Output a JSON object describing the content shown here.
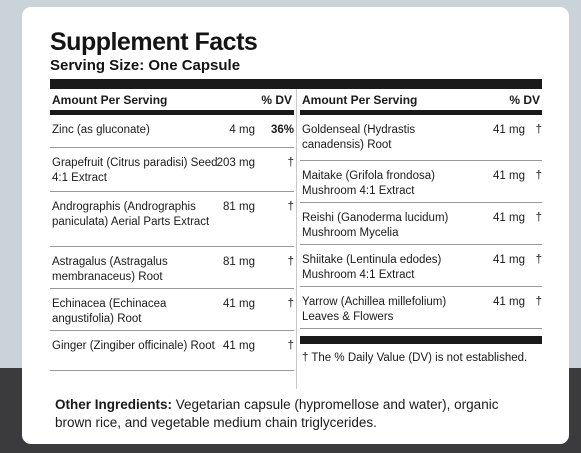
{
  "title": "Supplement Facts",
  "serving_size": "Serving Size: One Capsule",
  "header": {
    "amount_per_serving": "Amount Per Serving",
    "dv": "% DV"
  },
  "left_rows": [
    {
      "name": "Zinc (as gluconate)",
      "amount": "4 mg",
      "dv": "36%"
    },
    {
      "name": "Grapefruit (Citrus paradisi) Seed 4:1 Extract",
      "amount": "203 mg",
      "dv": "†"
    },
    {
      "name": "Andrographis (Andrographis paniculata) Aerial Parts Extract",
      "amount": "81 mg",
      "dv": "†"
    },
    {
      "name": "Astragalus (Astragalus membranaceus) Root",
      "amount": "81 mg",
      "dv": "†"
    },
    {
      "name": "Echinacea (Echinacea angustifolia) Root",
      "amount": "41 mg",
      "dv": "†"
    },
    {
      "name": "Ginger (Zingiber officinale) Root",
      "amount": "41 mg",
      "dv": "†"
    }
  ],
  "right_rows": [
    {
      "name": "Goldenseal (Hydrastis canadensis) Root",
      "amount": "41 mg",
      "dv": "†"
    },
    {
      "name": "Maitake (Grifola frondosa) Mushroom 4:1 Extract",
      "amount": "41 mg",
      "dv": "†"
    },
    {
      "name": "Reishi (Ganoderma lucidum) Mushroom Mycelia",
      "amount": "41 mg",
      "dv": "†"
    },
    {
      "name": "Shiitake (Lentinula edodes) Mushroom 4:1 Extract",
      "amount": "41 mg",
      "dv": "†"
    },
    {
      "name": "Yarrow (Achillea millefolium) Leaves & Flowers",
      "amount": "41 mg",
      "dv": "†"
    }
  ],
  "footnote": "† The % Daily Value (DV) is not established.",
  "other_ingredients": {
    "label": "Other Ingredients:",
    "text": " Vegetarian capsule (hypromellose and water), organic brown rice, and vegetable medium chain triglycerides."
  }
}
